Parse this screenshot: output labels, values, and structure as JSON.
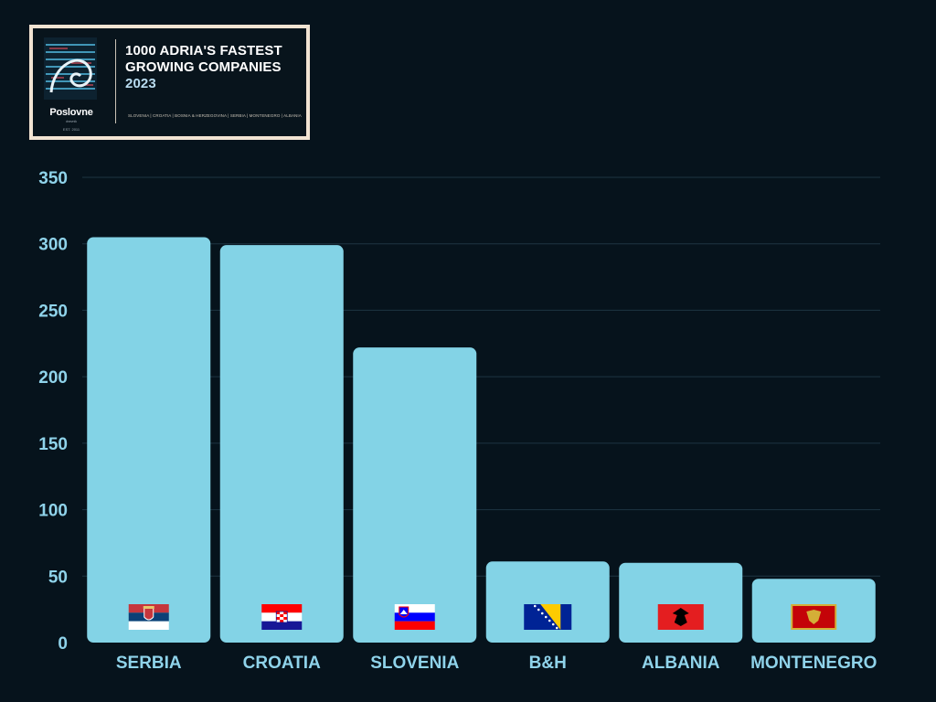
{
  "header": {
    "title_line1": "1000 ADRIA'S FASTEST",
    "title_line2": "GROWING COMPANIES",
    "year": "2023",
    "countries_line": "SLOVENIA | CROATIA | BOSNIA & HERZEGOVINA | SERBIA | MONTENEGRO | ALBANIA",
    "brand": "Poslovne",
    "brand_sub": "dnevnik",
    "brand_est": "EST. 2011"
  },
  "colors": {
    "background": "#06131c",
    "bar": "#83d3e6",
    "axis_text": "#8fd3ea",
    "grid": "#1e3442"
  },
  "chart_data": {
    "type": "bar",
    "title": "",
    "xlabel": "",
    "ylabel": "",
    "ylim": [
      0,
      350
    ],
    "yticks": [
      0,
      50,
      100,
      150,
      200,
      250,
      300,
      350
    ],
    "grid": true,
    "categories": [
      "SERBIA",
      "CROATIA",
      "SLOVENIA",
      "B&H",
      "ALBANIA",
      "MONTENEGRO"
    ],
    "values": [
      305,
      299,
      222,
      61,
      60,
      48
    ],
    "flags": [
      "serbia-flag-icon",
      "croatia-flag-icon",
      "slovenia-flag-icon",
      "bosnia-flag-icon",
      "albania-flag-icon",
      "montenegro-flag-icon"
    ]
  }
}
